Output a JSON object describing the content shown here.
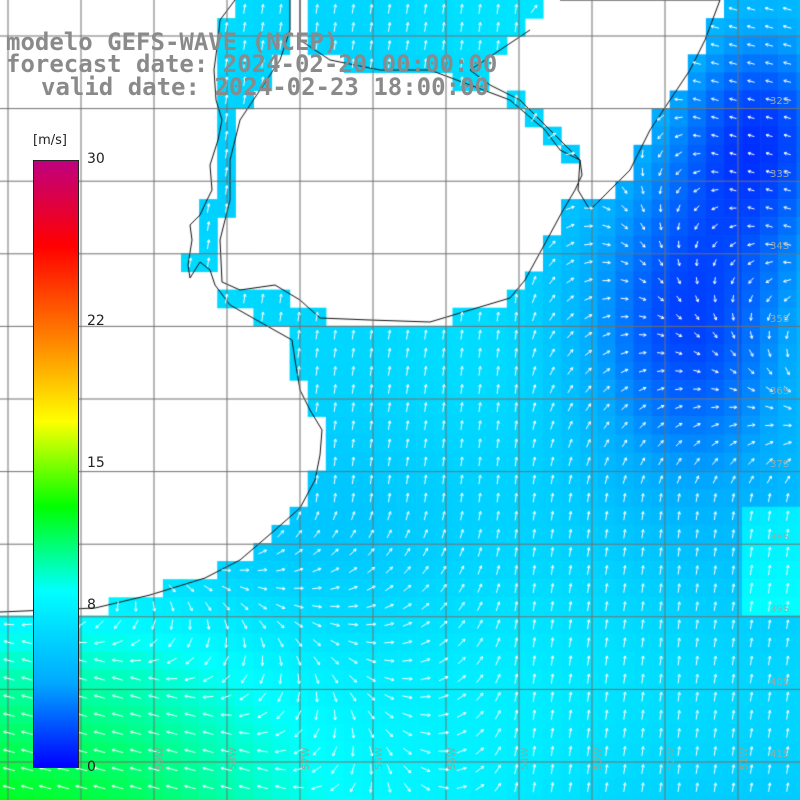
{
  "title": {
    "model": "modelo GEFS-WAVE (NCEP)",
    "forecast": "forecast date: 2024-02-20 00:00:00",
    "valid": "valid date: 2024-02-23 18:00:00"
  },
  "legend": {
    "unit": "[m/s]",
    "ticks": [
      {
        "value": 30,
        "label": "30"
      },
      {
        "value": 22,
        "label": "22"
      },
      {
        "value": 15,
        "label": "15"
      },
      {
        "value": 8,
        "label": "8"
      },
      {
        "value": 0,
        "label": "0"
      }
    ],
    "min": 0,
    "max": 30,
    "colors": [
      "#0000ff",
      "#00aaff",
      "#00ffff",
      "#00ff00",
      "#ffff00",
      "#ff7f00",
      "#ff0000",
      "#c0007f"
    ]
  },
  "map": {
    "land_color": "#ffffff",
    "grid_color": "#707070",
    "lat_labels": [
      "32S",
      "33S",
      "34S",
      "35S",
      "36S",
      "37S",
      "38S",
      "39S",
      "40S",
      "41S"
    ],
    "lon_labels": [
      "59W",
      "58W",
      "57W",
      "56W",
      "55W",
      "54W",
      "53W",
      "52W",
      "51W"
    ]
  }
}
